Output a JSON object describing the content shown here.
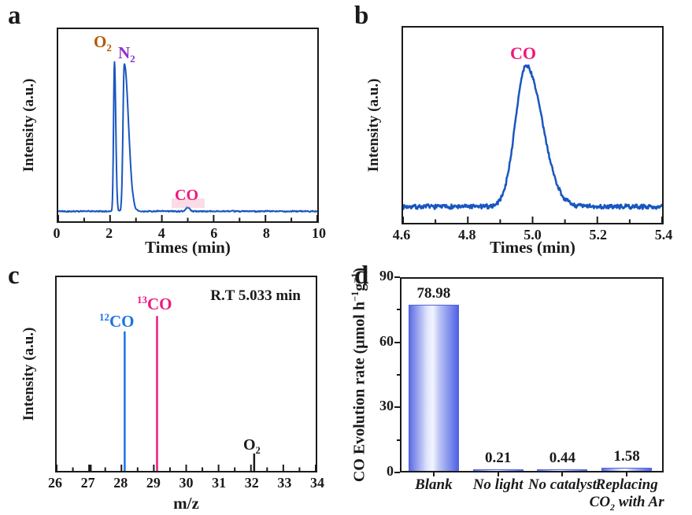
{
  "panels": {
    "a": {
      "letter": "a"
    },
    "b": {
      "letter": "b"
    },
    "c": {
      "letter": "c"
    },
    "d": {
      "letter": "d"
    }
  },
  "colors": {
    "trace_blue": "#1956c0",
    "stick_blue": "#1a74e0",
    "pink": "#f0187a",
    "o2_brown": "#b15a00",
    "n2_purple": "#9030cc",
    "axis_black": "#1a1a1a"
  },
  "chart_data": [
    {
      "panel": "a",
      "type": "line",
      "kind": "gc-chromatogram",
      "xlabel": "Times (min)",
      "ylabel": "Intensity (a.u.)",
      "xlim": [
        0,
        10
      ],
      "xticks": [
        0,
        2,
        4,
        6,
        8,
        10
      ],
      "xtick_labels": [
        "0",
        "2",
        "4",
        "6",
        "8",
        "10"
      ],
      "minor_xticks": [
        1,
        3,
        5,
        7,
        9
      ],
      "grid": "off",
      "line_color": "#1956c0",
      "line_width": 2,
      "baseline": 0.052,
      "noise": 0.004,
      "peaks": [
        {
          "name": "O2",
          "center": 2.17,
          "height": 0.78,
          "width_left": 0.035,
          "width_right": 0.05
        },
        {
          "name": "N2",
          "center": 2.55,
          "height": 0.77,
          "width_left": 0.05,
          "width_right": 0.16
        },
        {
          "name": "CO",
          "center": 5.0,
          "height": 0.022,
          "width_left": 0.07,
          "width_right": 0.07
        }
      ],
      "peak_labels": {
        "o2": {
          "base": "O",
          "sub": "2",
          "color": "#b15a00"
        },
        "n2": {
          "base": "N",
          "sub": "2",
          "color": "#9030cc"
        },
        "co": {
          "text": "CO",
          "color": "#f0187a"
        }
      }
    },
    {
      "panel": "b",
      "type": "line",
      "kind": "gc-chromatogram-zoom",
      "xlabel": "Times (min)",
      "ylabel": "Intensity (a.u.)",
      "xlim": [
        4.6,
        5.4
      ],
      "xticks": [
        4.6,
        4.8,
        5.0,
        5.2,
        5.4
      ],
      "xtick_labels": [
        "4.6",
        "4.8",
        "5.0",
        "5.2",
        "5.4"
      ],
      "minor_xticks": [
        4.7,
        4.9,
        5.1,
        5.3
      ],
      "grid": "off",
      "line_color": "#1956c0",
      "line_width": 2.5,
      "baseline": 0.083,
      "noise": 0.013,
      "peaks": [
        {
          "name": "CO",
          "center": 4.98,
          "height": 0.72,
          "width_left": 0.033,
          "width_right": 0.05
        }
      ],
      "peak_labels": {
        "co": {
          "text": "CO",
          "color": "#f0187a"
        }
      }
    },
    {
      "panel": "c",
      "type": "stick",
      "kind": "mass-spectrum",
      "xlabel": "m/z",
      "ylabel": "Intensity (a.u.)",
      "xlim": [
        26,
        34
      ],
      "xticks": [
        26,
        27,
        28,
        29,
        30,
        31,
        32,
        33,
        34
      ],
      "xtick_labels": [
        "26",
        "27",
        "28",
        "29",
        "30",
        "31",
        "32",
        "33",
        "34"
      ],
      "minor_xticks": [
        26.5,
        27.5,
        28.5,
        29.5,
        30.5,
        31.5,
        32.5,
        33.5
      ],
      "grid": "off",
      "annotation": "R.T 5.033 min",
      "sticks": [
        {
          "mz": 27.05,
          "height": 0.032,
          "color": "#1a1a1a"
        },
        {
          "mz": 28.1,
          "height": 0.72,
          "color": "#1a74e0"
        },
        {
          "mz": 29.1,
          "height": 0.8,
          "color": "#f0187a"
        },
        {
          "mz": 32.1,
          "height": 0.09,
          "color": "#1a1a1a"
        }
      ],
      "stick_labels": {
        "c12co": {
          "sup": "12",
          "base": "CO",
          "color": "#1a74e0"
        },
        "c13co": {
          "sup": "13",
          "base": "CO",
          "color": "#f0187a"
        },
        "o2": {
          "base": "O",
          "sub": "2",
          "color": "#1a1a1a"
        }
      }
    },
    {
      "panel": "d",
      "type": "bar",
      "ylabel_parts": {
        "pre": "CO Evolution rate (μmol h",
        "sup1": "−1",
        "mid": "g",
        "sup2": "−1",
        "post": ")"
      },
      "categories": [
        "Blank",
        "No light",
        "No catalyst",
        "Replacing CO2 with Ar"
      ],
      "category_labels": {
        "c0": "Blank",
        "c1": "No light",
        "c2": "No catalyst",
        "c3_line1": "Replacing",
        "c3_line2_pre": "CO",
        "c3_line2_sub": "2",
        "c3_line2_post": " with Ar"
      },
      "values": [
        78.98,
        0.21,
        0.44,
        1.58
      ],
      "value_labels": [
        "78.98",
        "0.21",
        "0.44",
        "1.58"
      ],
      "ylim": [
        0,
        90
      ],
      "yticks": [
        0,
        30,
        60,
        90
      ],
      "ytick_labels": [
        "0",
        "30",
        "60",
        "90"
      ],
      "minor_yticks": [
        15,
        45,
        75
      ],
      "grid": "off",
      "legend": "none",
      "bar_colors": {
        "edge": "#4f63e0",
        "gradient": [
          "#5b6ce4",
          "#dfe4fb",
          "#f2f4fe",
          "#b9c2f4",
          "#4f63e6"
        ]
      }
    }
  ]
}
